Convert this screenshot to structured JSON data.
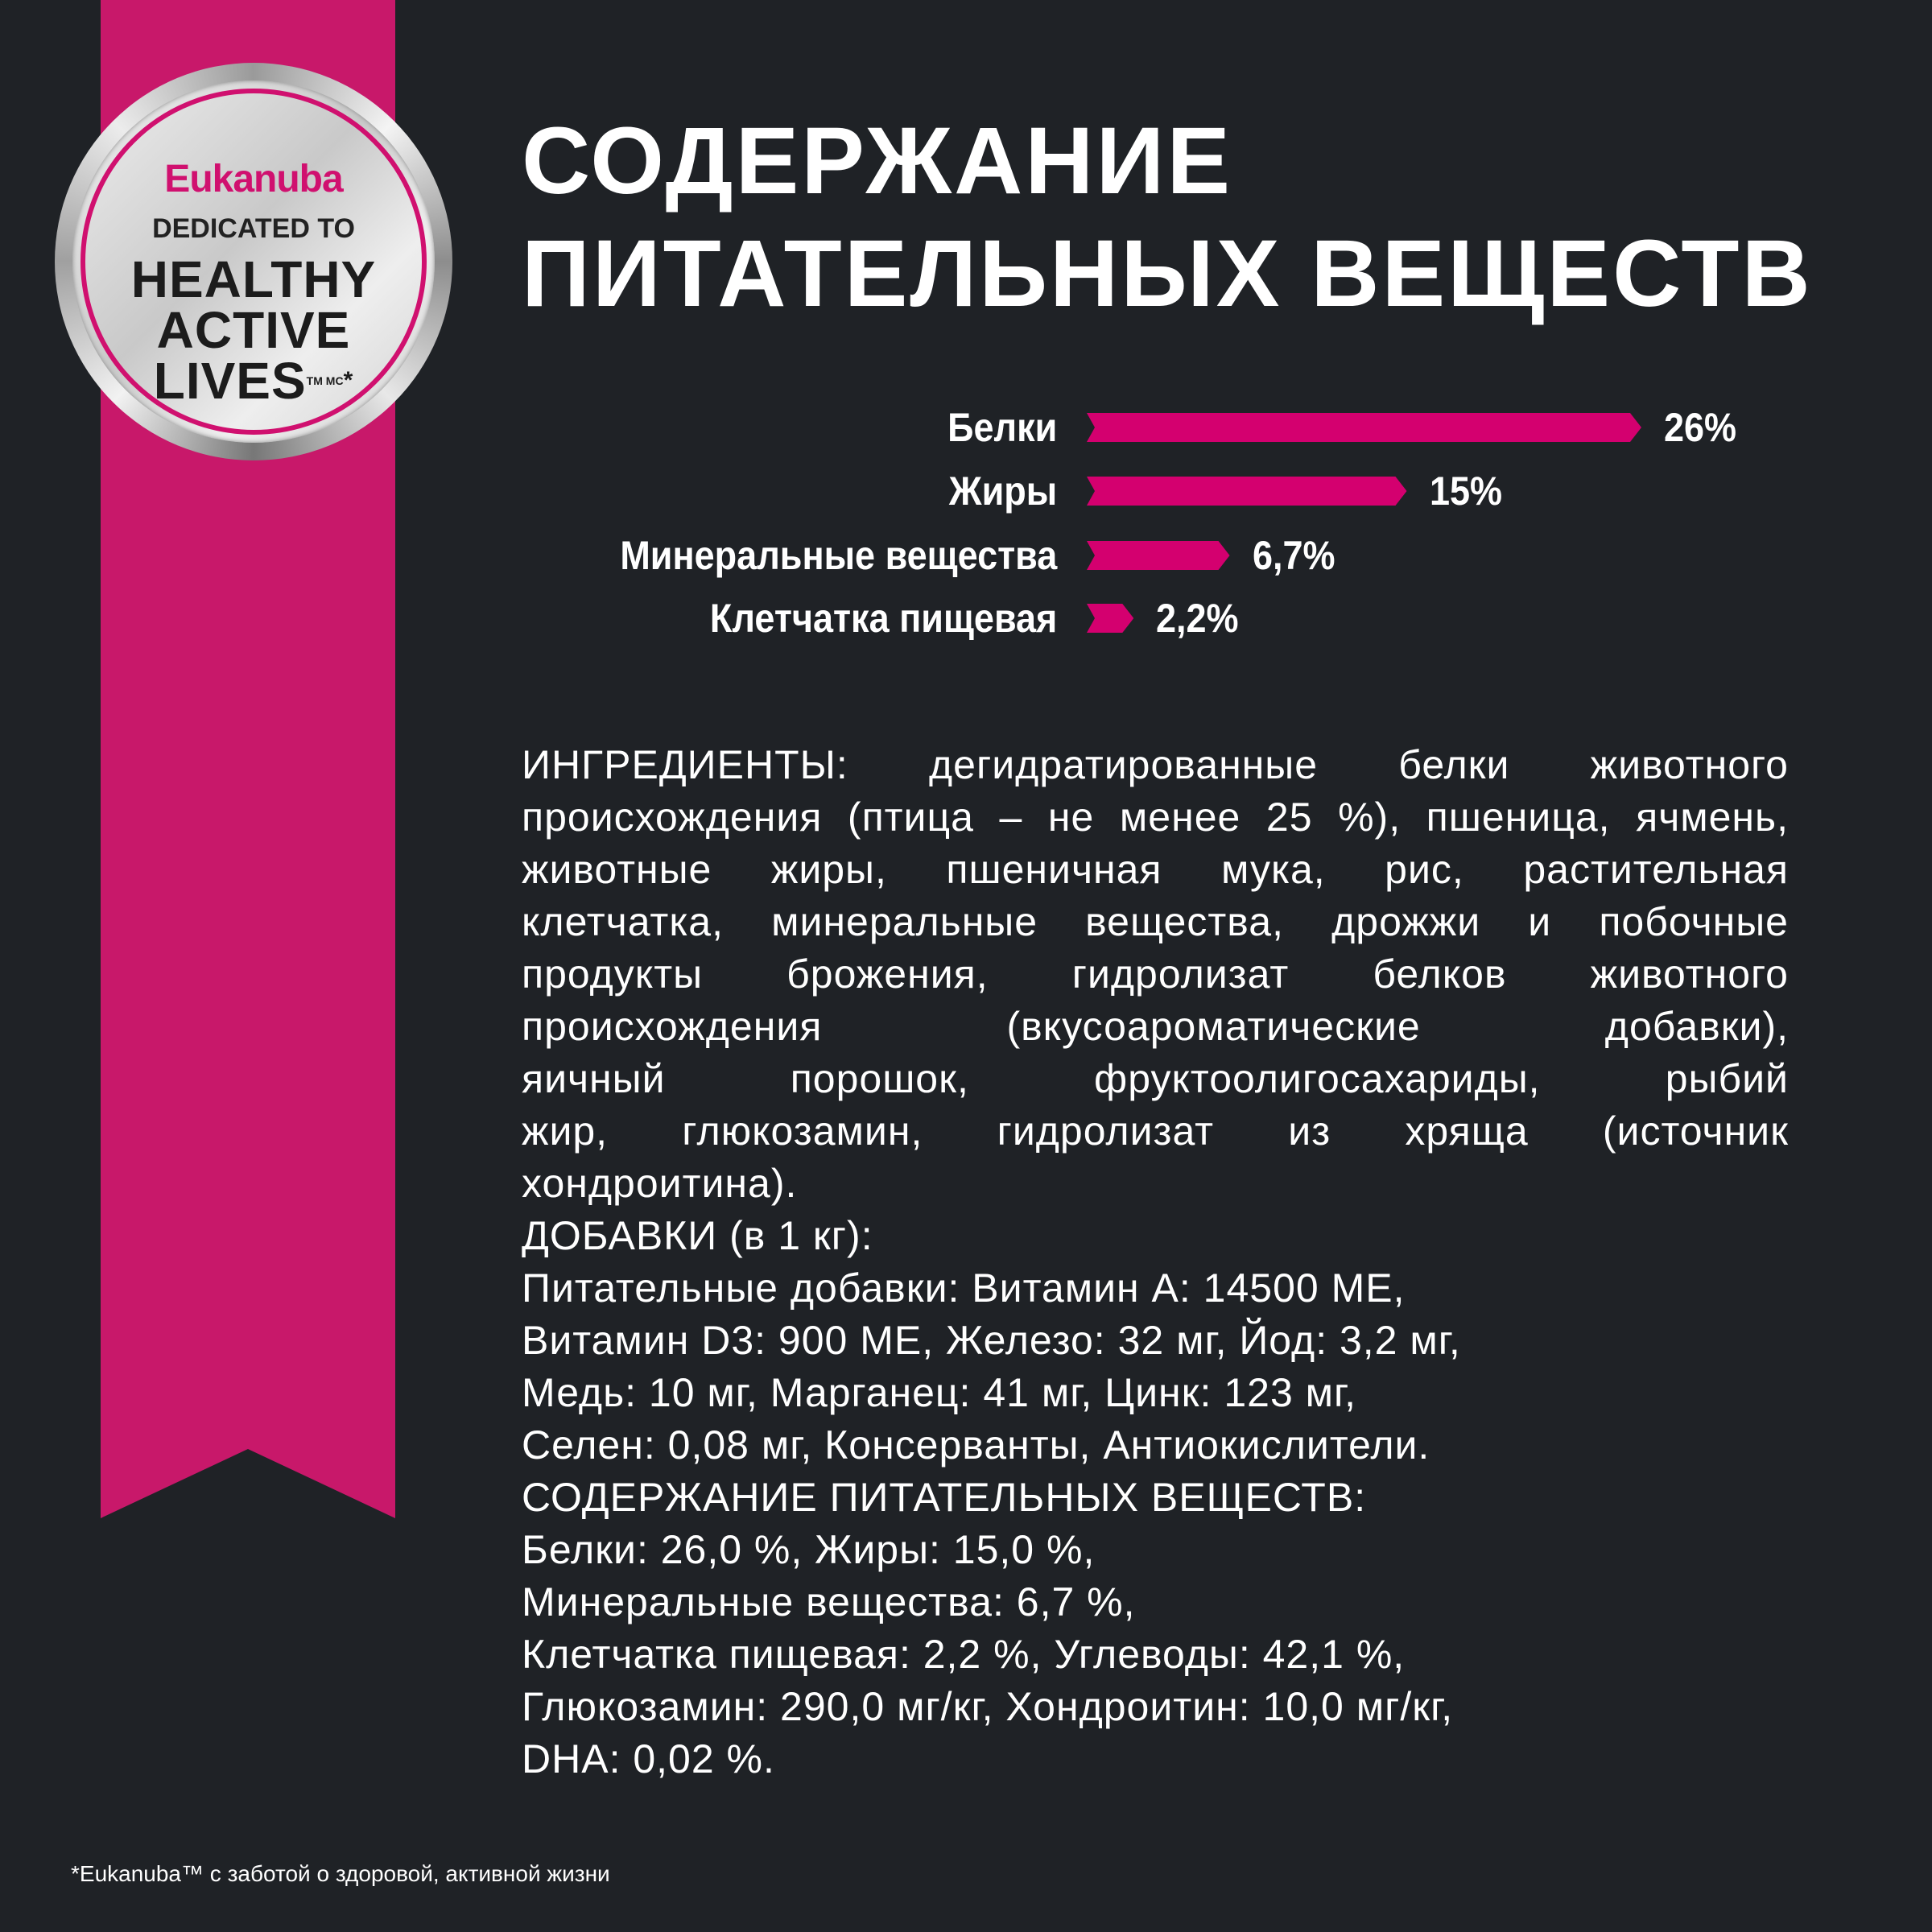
{
  "badge": {
    "brand": "Eukanuba",
    "line1": "DEDICATED TO",
    "line2": "HEALTHY",
    "line3": "ACTIVE",
    "line4": "LIVES",
    "tm": "TM MC",
    "asterisk": "*"
  },
  "colors": {
    "background": "#1f2226",
    "ribbon": "#c8186a",
    "bar": "#d4006f",
    "text": "#ffffff"
  },
  "title": {
    "line1": "СОДЕРЖАНИЕ",
    "line2": "ПИТАТЕЛЬНЫХ ВЕЩЕСТВ"
  },
  "chart_data": {
    "type": "bar",
    "orientation": "horizontal",
    "categories": [
      "Белки",
      "Жиры",
      "Минеральные вещества",
      "Клетчатка пищевая"
    ],
    "values": [
      26,
      15,
      6.7,
      2.2
    ],
    "value_labels": [
      "26%",
      "15%",
      "6,7%",
      "2,2%"
    ],
    "unit": "%"
  },
  "ingredients": {
    "lines": [
      "ИНГРЕДИЕНТЫ: дегидратированные белки животного",
      "происхождения (птица – не менее 25 %), пшеница, ячмень,",
      "животные жиры, пшеничная мука, рис, растительная",
      "клетчатка, минеральные вещества, дрожжи и побочные",
      "продукты брожения, гидролизат белков животного",
      "происхождения (вкусоароматические добавки),",
      "яичный порошок, фруктоолигосахариды, рыбий",
      "жир, глюкозамин, гидролизат из хряща (источник",
      "хондроитина).",
      "ДОБАВКИ (в 1 кг):",
      "Питательные добавки: Витамин А: 14500 МЕ,",
      "Витамин D3: 900 МЕ, Железо: 32 мг, Йод: 3,2 мг,",
      "Медь: 10 мг, Марганец: 41 мг, Цинк: 123 мг,",
      "Селен: 0,08 мг, Консерванты, Антиокислители.",
      "СОДЕРЖАНИЕ ПИТАТЕЛЬНЫХ ВЕЩЕСТВ:",
      "Белки: 26,0 %, Жиры: 15,0 %,",
      "Минеральные вещества: 6,7 %,",
      "Клетчатка пищевая: 2,2 %, Углеводы: 42,1 %,",
      "Глюкозамин: 290,0 мг/кг, Хондроитин: 10,0 мг/кг,",
      "DHA: 0,02 %."
    ]
  },
  "footnote": "*Eukanuba™ с заботой о здоровой, активной жизни"
}
